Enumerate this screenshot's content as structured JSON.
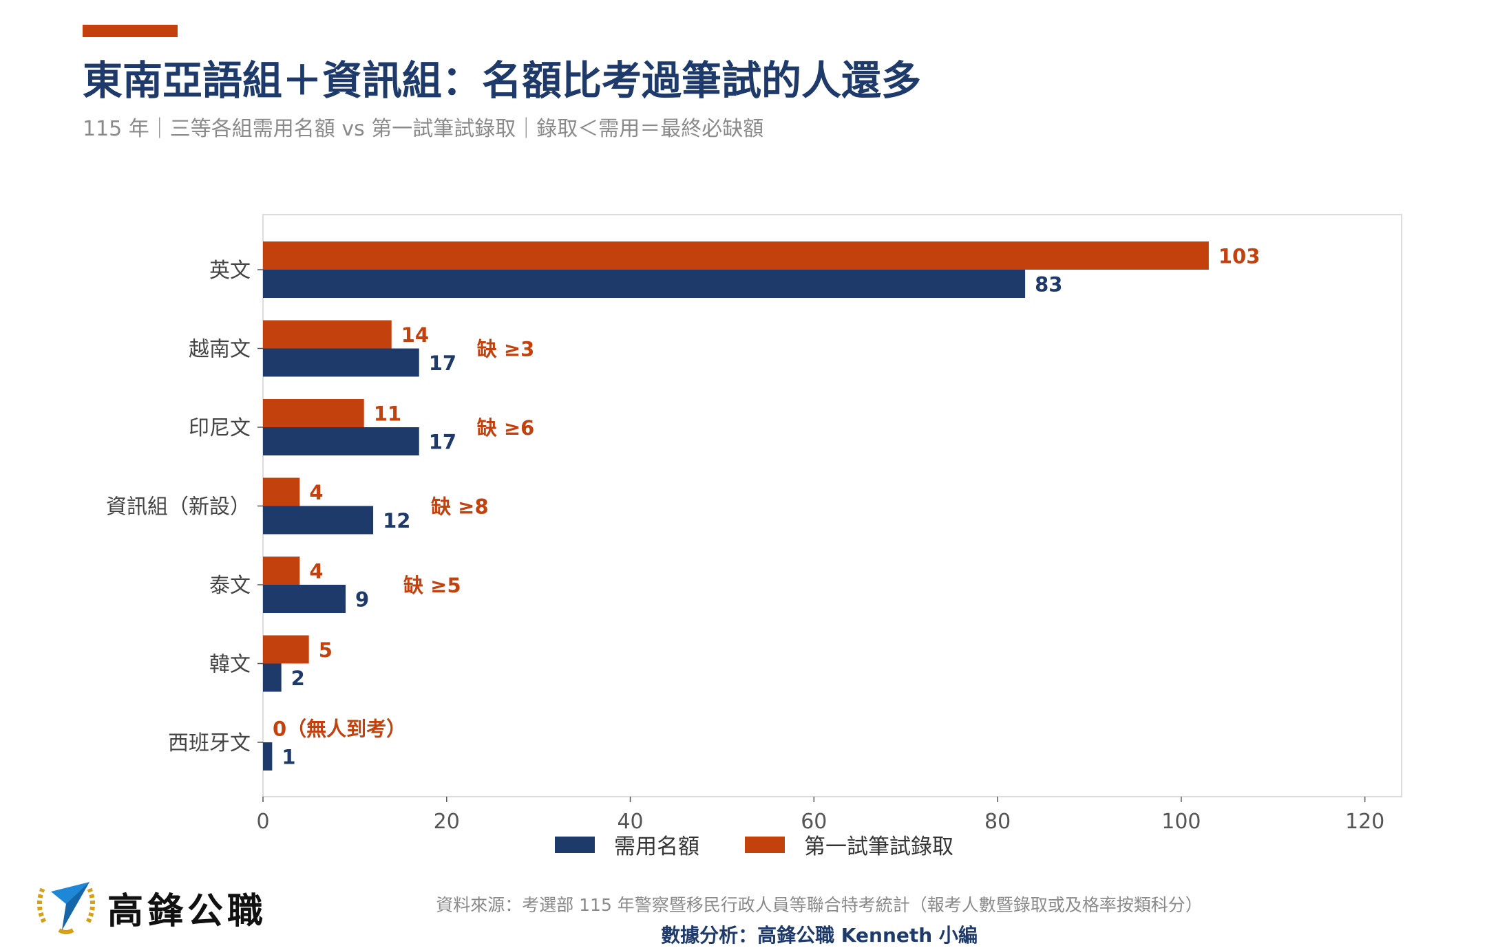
{
  "header": {
    "title": "東南亞語組＋資訊組：名額比考過筆試的人還多",
    "subtitle": "115 年｜三等各組需用名額 vs 第一試筆試錄取｜錄取＜需用＝最終必缺額"
  },
  "colors": {
    "navy": "#1e3a6b",
    "orange": "#c2410c",
    "accent": "#c2410c"
  },
  "chart_data": {
    "type": "bar",
    "orientation": "horizontal",
    "categories": [
      "英文",
      "越南文",
      "印尼文",
      "資訊組（新設）",
      "泰文",
      "韓文",
      "西班牙文"
    ],
    "series": [
      {
        "name": "需用名額",
        "values": [
          83,
          17,
          17,
          12,
          9,
          2,
          1
        ],
        "color": "#1e3a6b"
      },
      {
        "name": "第一試筆試錄取",
        "values": [
          103,
          14,
          11,
          4,
          4,
          5,
          0
        ],
        "color": "#c2410c"
      }
    ],
    "bar_labels": {
      "需用名額": [
        "83",
        "17",
        "17",
        "12",
        "9",
        "2",
        "1"
      ],
      "第一試筆試錄取": [
        "103",
        "14",
        "11",
        "4",
        "4",
        "5",
        "0（無人到考）"
      ]
    },
    "annotations": [
      "",
      "缺 ≥3",
      "缺 ≥6",
      "缺 ≥8",
      "缺 ≥5",
      "",
      ""
    ],
    "xlim": [
      0,
      124
    ],
    "xticks": [
      "0",
      "20",
      "40",
      "60",
      "80",
      "100",
      "120"
    ],
    "grid": false,
    "legend_position": "bottom-center"
  },
  "legend": [
    {
      "label": "需用名額",
      "color": "#1e3a6b"
    },
    {
      "label": "第一試筆試錄取",
      "color": "#c2410c"
    }
  ],
  "footer": {
    "brand": "高鋒公職",
    "source": "資料來源：考選部 115 年警察暨移民行政人員等聯合特考統計（報考人數暨錄取或及格率按類科分）",
    "credit": "數據分析：高鋒公職 Kenneth 小編"
  }
}
